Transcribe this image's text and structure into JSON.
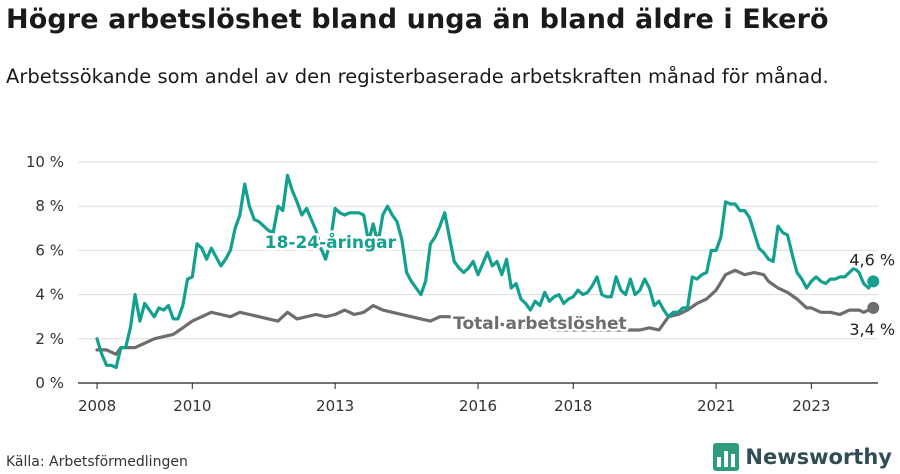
{
  "title": "Högre arbetslöshet bland unga än bland äldre i Ekerö",
  "subtitle": "Arbetssökande som andel av den registerbaserade arbetskraften månad för månad.",
  "source": "Källa: Arbetsförmedlingen",
  "brand": "Newsworthy",
  "colors": {
    "youth": "#13a08e",
    "total": "#6e6c6f",
    "grid": "#dddddd",
    "axis": "#222222"
  },
  "chart_data": {
    "type": "line",
    "title": "Högre arbetslöshet bland unga än bland äldre i Ekerö",
    "xlabel": "",
    "ylabel": "",
    "ylim": [
      0,
      10
    ],
    "xlim": [
      2007.6,
      2024.4
    ],
    "y_ticks": [
      0,
      2,
      4,
      6,
      8,
      10
    ],
    "y_tick_labels": [
      "0 %",
      "2 %",
      "4 %",
      "6 %",
      "8 %",
      "10 %"
    ],
    "x_ticks": [
      2008,
      2010,
      2013,
      2016,
      2018,
      2021,
      2023
    ],
    "x_tick_labels": [
      "2008",
      "2010",
      "2013",
      "2016",
      "2018",
      "2021",
      "2023"
    ],
    "grid": true,
    "series": [
      {
        "name": "18-24-åringar",
        "label": "18-24-åringar",
        "end_label": "4,6 %",
        "points": [
          [
            2008.0,
            2.0
          ],
          [
            2008.1,
            1.3
          ],
          [
            2008.2,
            0.8
          ],
          [
            2008.3,
            0.8
          ],
          [
            2008.4,
            0.7
          ],
          [
            2008.5,
            1.6
          ],
          [
            2008.6,
            1.6
          ],
          [
            2008.7,
            2.5
          ],
          [
            2008.8,
            4.0
          ],
          [
            2008.9,
            2.8
          ],
          [
            2009.0,
            3.6
          ],
          [
            2009.1,
            3.3
          ],
          [
            2009.2,
            3.0
          ],
          [
            2009.3,
            3.4
          ],
          [
            2009.4,
            3.3
          ],
          [
            2009.5,
            3.5
          ],
          [
            2009.6,
            2.9
          ],
          [
            2009.7,
            2.9
          ],
          [
            2009.8,
            3.5
          ],
          [
            2009.9,
            4.7
          ],
          [
            2010.0,
            4.8
          ],
          [
            2010.1,
            6.3
          ],
          [
            2010.2,
            6.1
          ],
          [
            2010.3,
            5.6
          ],
          [
            2010.4,
            6.1
          ],
          [
            2010.5,
            5.7
          ],
          [
            2010.6,
            5.3
          ],
          [
            2010.7,
            5.6
          ],
          [
            2010.8,
            6.0
          ],
          [
            2010.9,
            7.0
          ],
          [
            2011.0,
            7.6
          ],
          [
            2011.1,
            9.0
          ],
          [
            2011.2,
            8.0
          ],
          [
            2011.3,
            7.4
          ],
          [
            2011.4,
            7.3
          ],
          [
            2011.5,
            7.1
          ],
          [
            2011.6,
            6.9
          ],
          [
            2011.7,
            6.8
          ],
          [
            2011.8,
            8.0
          ],
          [
            2011.9,
            7.8
          ],
          [
            2012.0,
            9.4
          ],
          [
            2012.1,
            8.7
          ],
          [
            2012.2,
            8.2
          ],
          [
            2012.3,
            7.6
          ],
          [
            2012.4,
            7.9
          ],
          [
            2012.5,
            7.4
          ],
          [
            2012.6,
            6.9
          ],
          [
            2012.7,
            6.1
          ],
          [
            2012.8,
            5.6
          ],
          [
            2012.9,
            6.4
          ],
          [
            2013.0,
            7.9
          ],
          [
            2013.1,
            7.7
          ],
          [
            2013.2,
            7.6
          ],
          [
            2013.3,
            7.7
          ],
          [
            2013.4,
            7.7
          ],
          [
            2013.5,
            7.7
          ],
          [
            2013.6,
            7.6
          ],
          [
            2013.7,
            6.4
          ],
          [
            2013.8,
            7.2
          ],
          [
            2013.9,
            6.3
          ],
          [
            2014.0,
            7.6
          ],
          [
            2014.1,
            8.0
          ],
          [
            2014.2,
            7.6
          ],
          [
            2014.3,
            7.3
          ],
          [
            2014.4,
            6.5
          ],
          [
            2014.5,
            5.0
          ],
          [
            2014.6,
            4.6
          ],
          [
            2014.7,
            4.3
          ],
          [
            2014.8,
            4.0
          ],
          [
            2014.9,
            4.6
          ],
          [
            2015.0,
            6.3
          ],
          [
            2015.1,
            6.6
          ],
          [
            2015.2,
            7.1
          ],
          [
            2015.3,
            7.7
          ],
          [
            2015.4,
            6.6
          ],
          [
            2015.5,
            5.5
          ],
          [
            2015.6,
            5.2
          ],
          [
            2015.7,
            5.0
          ],
          [
            2015.8,
            5.2
          ],
          [
            2015.9,
            5.5
          ],
          [
            2016.0,
            4.9
          ],
          [
            2016.1,
            5.4
          ],
          [
            2016.2,
            5.9
          ],
          [
            2016.3,
            5.3
          ],
          [
            2016.4,
            5.5
          ],
          [
            2016.5,
            4.9
          ],
          [
            2016.6,
            5.6
          ],
          [
            2016.7,
            4.3
          ],
          [
            2016.8,
            4.5
          ],
          [
            2016.9,
            3.8
          ],
          [
            2017.0,
            3.6
          ],
          [
            2017.1,
            3.3
          ],
          [
            2017.2,
            3.7
          ],
          [
            2017.3,
            3.5
          ],
          [
            2017.4,
            4.1
          ],
          [
            2017.5,
            3.7
          ],
          [
            2017.6,
            3.9
          ],
          [
            2017.7,
            4.0
          ],
          [
            2017.8,
            3.6
          ],
          [
            2017.9,
            3.8
          ],
          [
            2018.0,
            3.9
          ],
          [
            2018.1,
            4.2
          ],
          [
            2018.2,
            4.0
          ],
          [
            2018.3,
            4.1
          ],
          [
            2018.4,
            4.4
          ],
          [
            2018.5,
            4.8
          ],
          [
            2018.6,
            4.0
          ],
          [
            2018.7,
            3.9
          ],
          [
            2018.8,
            3.9
          ],
          [
            2018.9,
            4.8
          ],
          [
            2019.0,
            4.2
          ],
          [
            2019.1,
            4.0
          ],
          [
            2019.2,
            4.7
          ],
          [
            2019.3,
            4.0
          ],
          [
            2019.4,
            4.2
          ],
          [
            2019.5,
            4.7
          ],
          [
            2019.6,
            4.3
          ],
          [
            2019.7,
            3.5
          ],
          [
            2019.8,
            3.7
          ],
          [
            2019.9,
            3.3
          ],
          [
            2020.0,
            3.0
          ],
          [
            2020.1,
            3.2
          ],
          [
            2020.2,
            3.2
          ],
          [
            2020.3,
            3.4
          ],
          [
            2020.4,
            3.4
          ],
          [
            2020.5,
            4.8
          ],
          [
            2020.6,
            4.7
          ],
          [
            2020.7,
            4.9
          ],
          [
            2020.8,
            5.0
          ],
          [
            2020.9,
            6.0
          ],
          [
            2021.0,
            6.0
          ],
          [
            2021.1,
            6.6
          ],
          [
            2021.2,
            8.2
          ],
          [
            2021.3,
            8.1
          ],
          [
            2021.4,
            8.1
          ],
          [
            2021.5,
            7.8
          ],
          [
            2021.6,
            7.8
          ],
          [
            2021.7,
            7.5
          ],
          [
            2021.8,
            6.8
          ],
          [
            2021.9,
            6.1
          ],
          [
            2022.0,
            5.9
          ],
          [
            2022.1,
            5.6
          ],
          [
            2022.2,
            5.5
          ],
          [
            2022.3,
            7.1
          ],
          [
            2022.4,
            6.8
          ],
          [
            2022.5,
            6.7
          ],
          [
            2022.6,
            5.8
          ],
          [
            2022.7,
            5.0
          ],
          [
            2022.8,
            4.7
          ],
          [
            2022.9,
            4.3
          ],
          [
            2023.0,
            4.6
          ],
          [
            2023.1,
            4.8
          ],
          [
            2023.2,
            4.6
          ],
          [
            2023.3,
            4.5
          ],
          [
            2023.4,
            4.7
          ],
          [
            2023.5,
            4.7
          ],
          [
            2023.6,
            4.8
          ],
          [
            2023.7,
            4.8
          ],
          [
            2023.8,
            5.0
          ],
          [
            2023.9,
            5.2
          ],
          [
            2024.0,
            5.0
          ],
          [
            2024.1,
            4.5
          ],
          [
            2024.2,
            4.3
          ],
          [
            2024.3,
            4.6
          ]
        ]
      },
      {
        "name": "Total arbetslöshet",
        "label": "Total arbetslöshet",
        "end_label": "3,4 %",
        "points": [
          [
            2008.0,
            1.5
          ],
          [
            2008.2,
            1.5
          ],
          [
            2008.4,
            1.3
          ],
          [
            2008.5,
            1.6
          ],
          [
            2008.8,
            1.6
          ],
          [
            2009.0,
            1.8
          ],
          [
            2009.2,
            2.0
          ],
          [
            2009.4,
            2.1
          ],
          [
            2009.6,
            2.2
          ],
          [
            2009.8,
            2.5
          ],
          [
            2010.0,
            2.8
          ],
          [
            2010.2,
            3.0
          ],
          [
            2010.4,
            3.2
          ],
          [
            2010.6,
            3.1
          ],
          [
            2010.8,
            3.0
          ],
          [
            2011.0,
            3.2
          ],
          [
            2011.2,
            3.1
          ],
          [
            2011.4,
            3.0
          ],
          [
            2011.6,
            2.9
          ],
          [
            2011.8,
            2.8
          ],
          [
            2012.0,
            3.2
          ],
          [
            2012.2,
            2.9
          ],
          [
            2012.4,
            3.0
          ],
          [
            2012.6,
            3.1
          ],
          [
            2012.8,
            3.0
          ],
          [
            2013.0,
            3.1
          ],
          [
            2013.2,
            3.3
          ],
          [
            2013.4,
            3.1
          ],
          [
            2013.6,
            3.2
          ],
          [
            2013.8,
            3.5
          ],
          [
            2014.0,
            3.3
          ],
          [
            2014.2,
            3.2
          ],
          [
            2014.4,
            3.1
          ],
          [
            2014.6,
            3.0
          ],
          [
            2014.8,
            2.9
          ],
          [
            2015.0,
            2.8
          ],
          [
            2015.2,
            3.0
          ],
          [
            2015.4,
            3.0
          ],
          [
            2015.6,
            2.8
          ],
          [
            2015.8,
            2.9
          ],
          [
            2016.0,
            2.7
          ],
          [
            2016.2,
            2.6
          ],
          [
            2016.4,
            2.7
          ],
          [
            2016.6,
            2.6
          ],
          [
            2016.8,
            2.6
          ],
          [
            2017.0,
            2.5
          ],
          [
            2017.2,
            2.5
          ],
          [
            2017.4,
            2.5
          ],
          [
            2017.6,
            2.4
          ],
          [
            2017.8,
            2.4
          ],
          [
            2018.0,
            2.4
          ],
          [
            2018.2,
            2.4
          ],
          [
            2018.4,
            2.4
          ],
          [
            2018.6,
            2.4
          ],
          [
            2018.8,
            2.4
          ],
          [
            2019.0,
            2.4
          ],
          [
            2019.2,
            2.4
          ],
          [
            2019.4,
            2.4
          ],
          [
            2019.6,
            2.5
          ],
          [
            2019.8,
            2.4
          ],
          [
            2020.0,
            3.0
          ],
          [
            2020.2,
            3.1
          ],
          [
            2020.4,
            3.3
          ],
          [
            2020.6,
            3.6
          ],
          [
            2020.8,
            3.8
          ],
          [
            2021.0,
            4.2
          ],
          [
            2021.2,
            4.9
          ],
          [
            2021.4,
            5.1
          ],
          [
            2021.6,
            4.9
          ],
          [
            2021.8,
            5.0
          ],
          [
            2022.0,
            4.9
          ],
          [
            2022.1,
            4.6
          ],
          [
            2022.3,
            4.3
          ],
          [
            2022.5,
            4.1
          ],
          [
            2022.7,
            3.8
          ],
          [
            2022.9,
            3.4
          ],
          [
            2023.0,
            3.4
          ],
          [
            2023.2,
            3.2
          ],
          [
            2023.4,
            3.2
          ],
          [
            2023.6,
            3.1
          ],
          [
            2023.8,
            3.3
          ],
          [
            2024.0,
            3.3
          ],
          [
            2024.1,
            3.2
          ],
          [
            2024.3,
            3.4
          ]
        ]
      }
    ]
  }
}
